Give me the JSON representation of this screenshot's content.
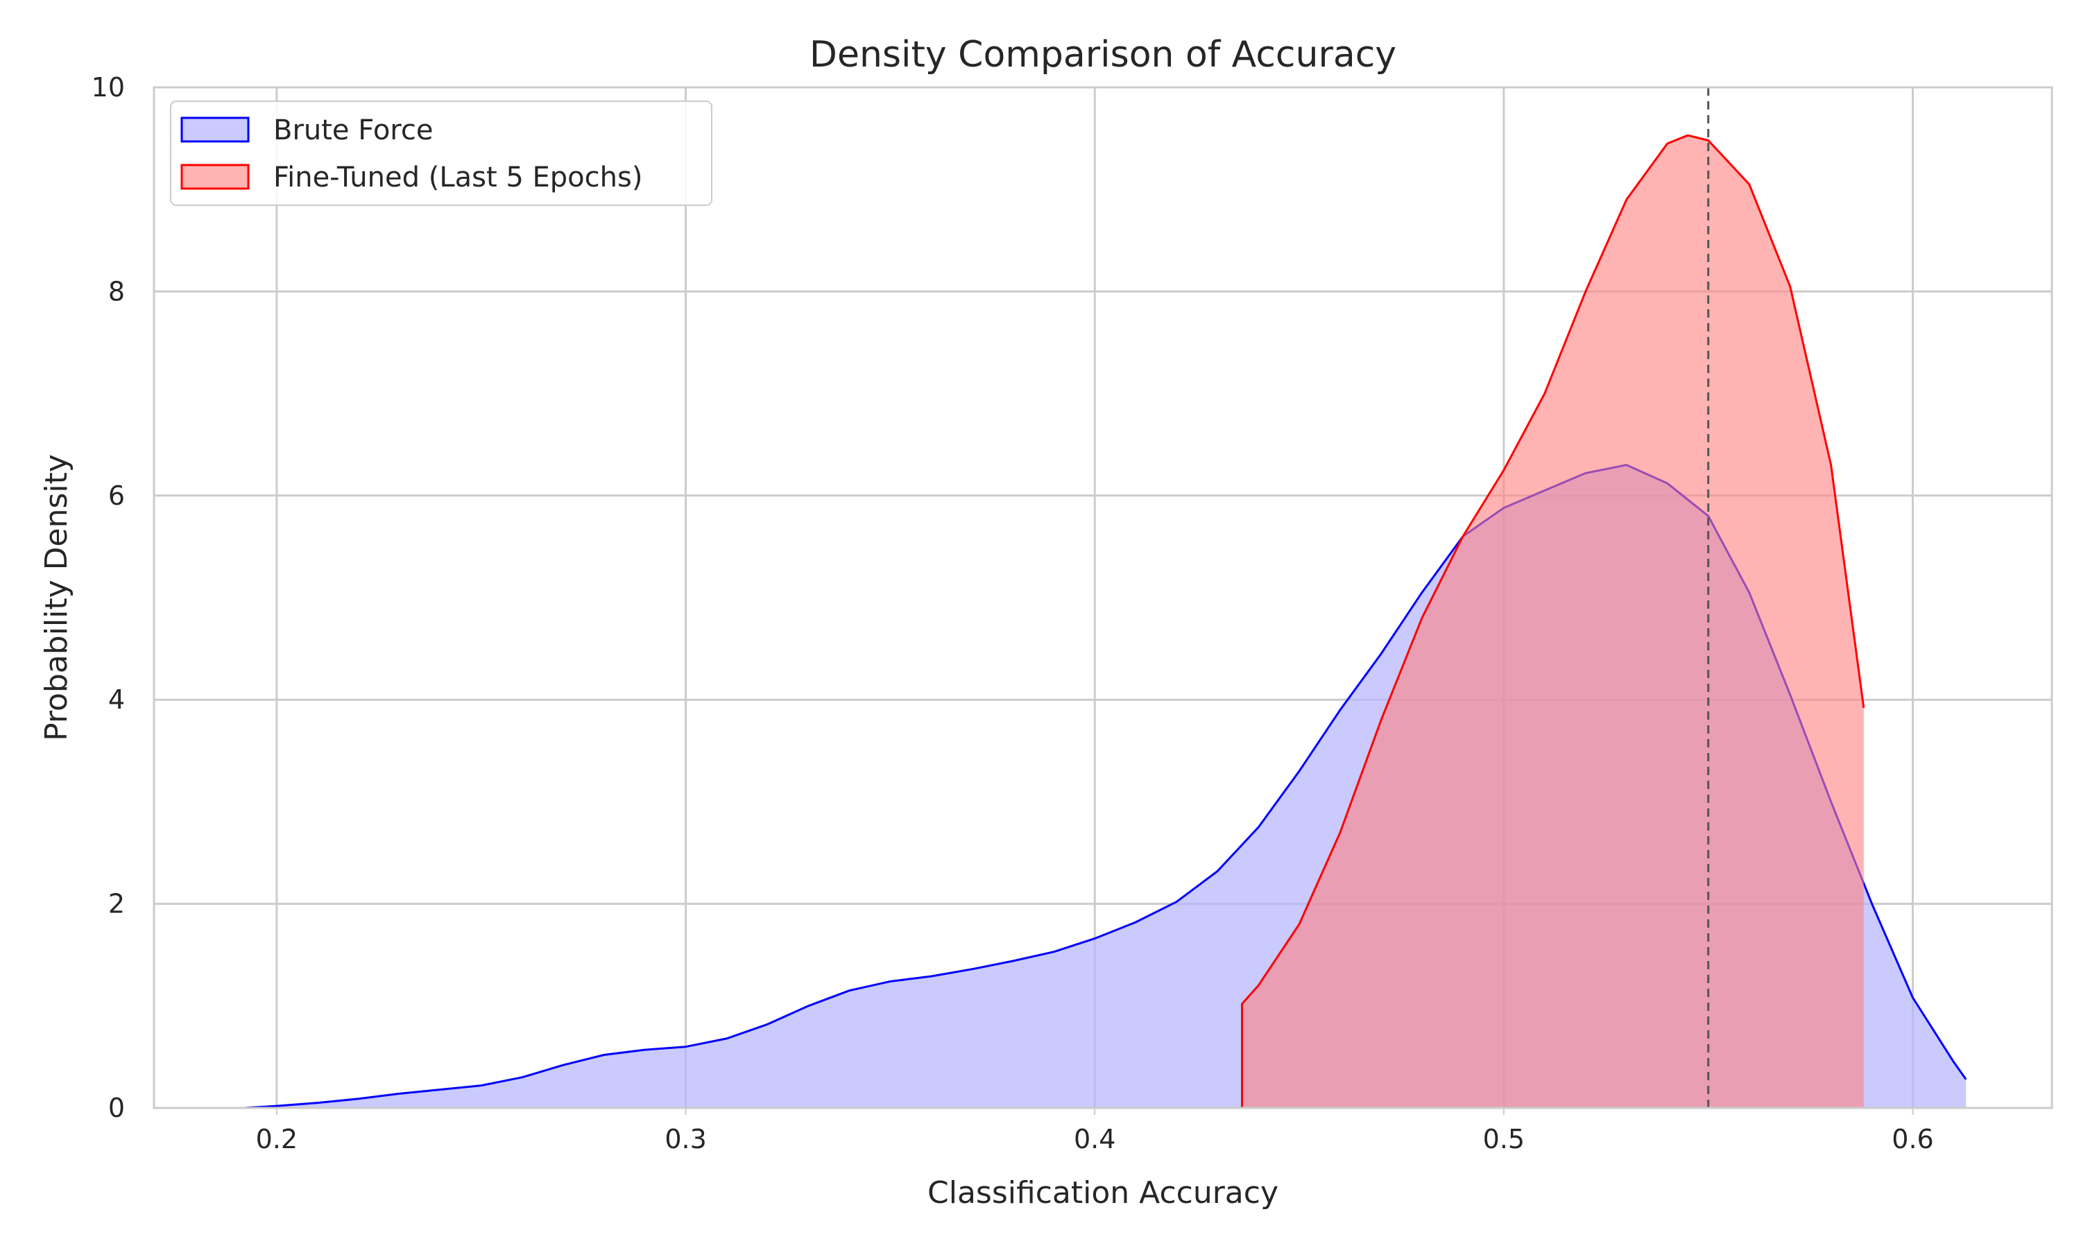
{
  "chart_data": {
    "type": "area",
    "title": "Density Comparison of Accuracy",
    "xlabel": "Classification Accuracy",
    "ylabel": "Probability Density",
    "xlim": [
      0.17,
      0.634
    ],
    "ylim": [
      0,
      10
    ],
    "xticks": [
      0.2,
      0.3,
      0.4,
      0.5,
      0.6
    ],
    "xtick_labels": [
      "0.2",
      "0.3",
      "0.4",
      "0.5",
      "0.6"
    ],
    "yticks": [
      0,
      2,
      4,
      6,
      8,
      10
    ],
    "ytick_labels": [
      "0",
      "2",
      "4",
      "6",
      "8",
      "10"
    ],
    "grid": true,
    "legend_position": "top-left",
    "reference_line": {
      "x": 0.55,
      "style": "dashed",
      "color": "#555555"
    },
    "series": [
      {
        "name": "Brute Force",
        "stroke": "#0000ff",
        "fill": "#b3b3ff",
        "fill_opacity": 0.7,
        "points": [
          [
            0.192,
            0.0
          ],
          [
            0.2,
            0.02
          ],
          [
            0.21,
            0.05
          ],
          [
            0.22,
            0.09
          ],
          [
            0.23,
            0.14
          ],
          [
            0.24,
            0.18
          ],
          [
            0.25,
            0.22
          ],
          [
            0.26,
            0.3
          ],
          [
            0.27,
            0.42
          ],
          [
            0.28,
            0.52
          ],
          [
            0.29,
            0.57
          ],
          [
            0.3,
            0.6
          ],
          [
            0.31,
            0.68
          ],
          [
            0.32,
            0.82
          ],
          [
            0.33,
            1.0
          ],
          [
            0.34,
            1.15
          ],
          [
            0.35,
            1.24
          ],
          [
            0.36,
            1.29
          ],
          [
            0.37,
            1.36
          ],
          [
            0.38,
            1.44
          ],
          [
            0.39,
            1.53
          ],
          [
            0.4,
            1.66
          ],
          [
            0.41,
            1.82
          ],
          [
            0.42,
            2.02
          ],
          [
            0.43,
            2.32
          ],
          [
            0.44,
            2.75
          ],
          [
            0.45,
            3.3
          ],
          [
            0.46,
            3.9
          ],
          [
            0.47,
            4.45
          ],
          [
            0.48,
            5.05
          ],
          [
            0.49,
            5.6
          ],
          [
            0.5,
            5.88
          ],
          [
            0.51,
            6.05
          ],
          [
            0.52,
            6.22
          ],
          [
            0.53,
            6.3
          ],
          [
            0.54,
            6.12
          ],
          [
            0.55,
            5.8
          ],
          [
            0.56,
            5.05
          ],
          [
            0.57,
            4.05
          ],
          [
            0.58,
            3.0
          ],
          [
            0.59,
            2.0
          ],
          [
            0.6,
            1.08
          ],
          [
            0.61,
            0.45
          ],
          [
            0.613,
            0.28
          ],
          [
            0.613,
            0.0
          ]
        ]
      },
      {
        "name": "Fine-Tuned (Last 5 Epochs)",
        "stroke": "#ff0000",
        "fill": "#ff8080",
        "fill_opacity": 0.6,
        "points": [
          [
            0.436,
            0.0
          ],
          [
            0.436,
            1.02
          ],
          [
            0.44,
            1.2
          ],
          [
            0.45,
            1.8
          ],
          [
            0.46,
            2.7
          ],
          [
            0.47,
            3.8
          ],
          [
            0.48,
            4.8
          ],
          [
            0.49,
            5.6
          ],
          [
            0.5,
            6.25
          ],
          [
            0.51,
            7.0
          ],
          [
            0.52,
            8.0
          ],
          [
            0.53,
            8.9
          ],
          [
            0.54,
            9.45
          ],
          [
            0.545,
            9.53
          ],
          [
            0.55,
            9.48
          ],
          [
            0.56,
            9.05
          ],
          [
            0.57,
            8.05
          ],
          [
            0.58,
            6.3
          ],
          [
            0.588,
            3.92
          ],
          [
            0.588,
            0.0
          ]
        ]
      }
    ]
  }
}
